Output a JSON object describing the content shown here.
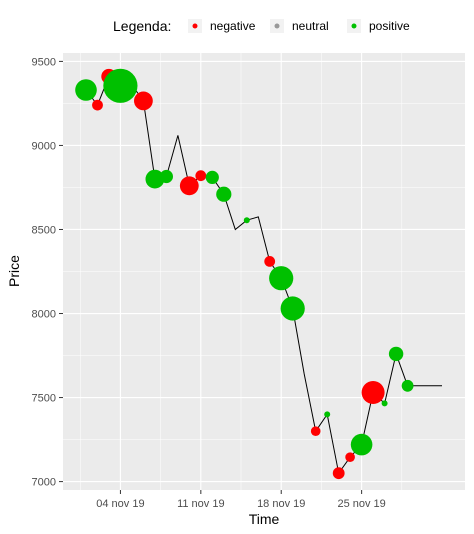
{
  "chart_data": {
    "type": "scatter",
    "title": "",
    "xlabel": "Time",
    "ylabel": "Price",
    "xlim": [
      "2019-10-30",
      "2019-12-04"
    ],
    "ylim": [
      6950,
      9550
    ],
    "x_ticks": [
      "2019-11-04",
      "2019-11-11",
      "2019-11-18",
      "2019-11-25"
    ],
    "x_tick_labels": [
      "04 nov 19",
      "11 nov 19",
      "18 nov 19",
      "25 nov 19"
    ],
    "y_ticks": [
      7000,
      7500,
      8000,
      8500,
      9000,
      9500
    ],
    "y_tick_labels": [
      "7000",
      "7500",
      "8000",
      "8500",
      "9000",
      "9500"
    ],
    "grid": true,
    "legend": {
      "title": "Legenda:",
      "position": "top",
      "items": [
        {
          "key": "negative",
          "label": "negative"
        },
        {
          "key": "neutral",
          "label": "neutral"
        },
        {
          "key": "positive",
          "label": "positive"
        }
      ]
    },
    "colors": {
      "negative": "#ff0000",
      "neutral": "#999999",
      "positive": "#00c000",
      "line": "#000000",
      "panel": "#ebebeb",
      "grid": "#ffffff"
    },
    "line": {
      "x": [
        "2019-11-01",
        "2019-11-02",
        "2019-11-03",
        "2019-11-04",
        "2019-11-05",
        "2019-11-06",
        "2019-11-07",
        "2019-11-08",
        "2019-11-09",
        "2019-11-10",
        "2019-11-11",
        "2019-11-12",
        "2019-11-13",
        "2019-11-14",
        "2019-11-15",
        "2019-11-16",
        "2019-11-17",
        "2019-11-18",
        "2019-11-19",
        "2019-11-20",
        "2019-11-21",
        "2019-11-22",
        "2019-11-23",
        "2019-11-24",
        "2019-11-25",
        "2019-11-26",
        "2019-11-27",
        "2019-11-28",
        "2019-11-29",
        "2019-11-30",
        "2019-12-01",
        "2019-12-02"
      ],
      "y": [
        9330,
        9240,
        9410,
        9355,
        9360,
        9265,
        8800,
        8815,
        9060,
        8760,
        8820,
        8810,
        8710,
        8500,
        8555,
        8575,
        8310,
        8210,
        8030,
        7640,
        7300,
        7400,
        7050,
        7145,
        7220,
        7530,
        7465,
        7760,
        7570,
        7570,
        7570,
        7570
      ]
    },
    "points": [
      {
        "x": "2019-11-01",
        "y": 9330,
        "sentiment": "positive",
        "size": 4
      },
      {
        "x": "2019-11-02",
        "y": 9240,
        "sentiment": "negative",
        "size": 1
      },
      {
        "x": "2019-11-03",
        "y": 9410,
        "sentiment": "negative",
        "size": 2
      },
      {
        "x": "2019-11-04",
        "y": 9355,
        "sentiment": "positive",
        "size": 10
      },
      {
        "x": "2019-11-06",
        "y": 9265,
        "sentiment": "negative",
        "size": 3
      },
      {
        "x": "2019-11-07",
        "y": 8800,
        "sentiment": "positive",
        "size": 3
      },
      {
        "x": "2019-11-08",
        "y": 8815,
        "sentiment": "positive",
        "size": 1.5
      },
      {
        "x": "2019-11-10",
        "y": 8760,
        "sentiment": "negative",
        "size": 3
      },
      {
        "x": "2019-11-11",
        "y": 8820,
        "sentiment": "negative",
        "size": 1
      },
      {
        "x": "2019-11-12",
        "y": 8810,
        "sentiment": "positive",
        "size": 1.5
      },
      {
        "x": "2019-11-13",
        "y": 8710,
        "sentiment": "positive",
        "size": 2
      },
      {
        "x": "2019-11-15",
        "y": 8555,
        "sentiment": "positive",
        "size": 0.3
      },
      {
        "x": "2019-11-17",
        "y": 8310,
        "sentiment": "negative",
        "size": 1
      },
      {
        "x": "2019-11-18",
        "y": 8210,
        "sentiment": "positive",
        "size": 5
      },
      {
        "x": "2019-11-19",
        "y": 8030,
        "sentiment": "positive",
        "size": 5
      },
      {
        "x": "2019-11-21",
        "y": 7300,
        "sentiment": "negative",
        "size": 0.8
      },
      {
        "x": "2019-11-22",
        "y": 7400,
        "sentiment": "positive",
        "size": 0.3
      },
      {
        "x": "2019-11-23",
        "y": 7050,
        "sentiment": "negative",
        "size": 1.2
      },
      {
        "x": "2019-11-24",
        "y": 7145,
        "sentiment": "negative",
        "size": 0.8
      },
      {
        "x": "2019-11-25",
        "y": 7220,
        "sentiment": "positive",
        "size": 4
      },
      {
        "x": "2019-11-26",
        "y": 7530,
        "sentiment": "negative",
        "size": 4.5
      },
      {
        "x": "2019-11-27",
        "y": 7465,
        "sentiment": "positive",
        "size": 0.3
      },
      {
        "x": "2019-11-28",
        "y": 7760,
        "sentiment": "positive",
        "size": 1.8
      },
      {
        "x": "2019-11-29",
        "y": 7570,
        "sentiment": "positive",
        "size": 1.2
      }
    ]
  }
}
